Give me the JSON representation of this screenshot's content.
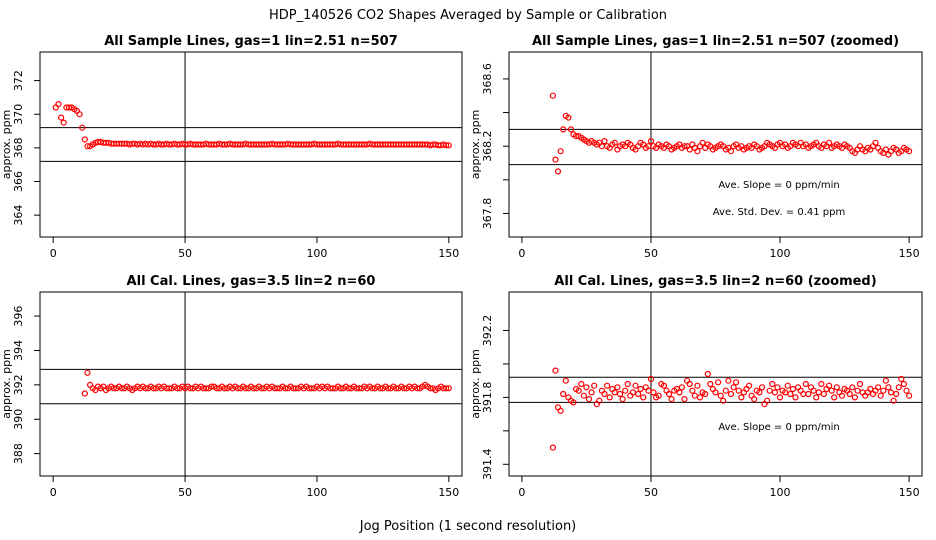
{
  "page": {
    "main_title": "HDP_140526  CO2 Shapes Averaged by Sample or Calibration",
    "x_axis_caption": "Jog Position (1 second resolution)"
  },
  "chart_data": [
    {
      "type": "scatter",
      "title": "All Sample Lines, gas=1 lin=2.51 n=507",
      "xlabel": "",
      "ylabel": "approx. ppm",
      "xlim": [
        -5,
        155
      ],
      "ylim": [
        362.7,
        373.7
      ],
      "xticks": [
        0,
        50,
        100,
        150
      ],
      "yticks": [
        364,
        366,
        368,
        370,
        372
      ],
      "hlines": [
        369.2,
        367.2
      ],
      "vline": 50,
      "annotations": [],
      "x": [
        1,
        2,
        3,
        4,
        5,
        6,
        7,
        8,
        9,
        10,
        11,
        12,
        13,
        14,
        15,
        16,
        17,
        18,
        19,
        20,
        21,
        22,
        23,
        24,
        25,
        26,
        27,
        28,
        29,
        30,
        31,
        32,
        33,
        34,
        35,
        36,
        37,
        38,
        39,
        40,
        41,
        42,
        43,
        44,
        45,
        46,
        47,
        48,
        49,
        50,
        51,
        52,
        53,
        54,
        55,
        56,
        57,
        58,
        59,
        60,
        61,
        62,
        63,
        64,
        65,
        66,
        67,
        68,
        69,
        70,
        71,
        72,
        73,
        74,
        75,
        76,
        77,
        78,
        79,
        80,
        81,
        82,
        83,
        84,
        85,
        86,
        87,
        88,
        89,
        90,
        91,
        92,
        93,
        94,
        95,
        96,
        97,
        98,
        99,
        100,
        101,
        102,
        103,
        104,
        105,
        106,
        107,
        108,
        109,
        110,
        111,
        112,
        113,
        114,
        115,
        116,
        117,
        118,
        119,
        120,
        121,
        122,
        123,
        124,
        125,
        126,
        127,
        128,
        129,
        130,
        131,
        132,
        133,
        134,
        135,
        136,
        137,
        138,
        139,
        140,
        141,
        142,
        143,
        144,
        145,
        146,
        147,
        148,
        149,
        150
      ],
      "values": [
        370.4,
        370.6,
        369.8,
        369.5,
        370.4,
        370.4,
        370.4,
        370.3,
        370.2,
        370.0,
        369.2,
        368.5,
        368.1,
        368.1,
        368.2,
        368.3,
        368.35,
        368.35,
        368.3,
        368.3,
        368.3,
        368.25,
        368.25,
        368.25,
        368.25,
        368.25,
        368.25,
        368.25,
        368.2,
        368.25,
        368.25,
        368.2,
        368.25,
        368.2,
        368.25,
        368.2,
        368.25,
        368.2,
        368.2,
        368.25,
        368.2,
        368.2,
        368.25,
        368.2,
        368.2,
        368.25,
        368.2,
        368.2,
        368.25,
        368.2,
        368.2,
        368.25,
        368.2,
        368.2,
        368.2,
        368.2,
        368.2,
        368.25,
        368.2,
        368.2,
        368.2,
        368.2,
        368.25,
        368.2,
        368.2,
        368.2,
        368.25,
        368.2,
        368.2,
        368.2,
        368.2,
        368.2,
        368.25,
        368.2,
        368.2,
        368.2,
        368.2,
        368.2,
        368.2,
        368.2,
        368.2,
        368.2,
        368.25,
        368.2,
        368.2,
        368.2,
        368.2,
        368.2,
        368.25,
        368.2,
        368.2,
        368.2,
        368.2,
        368.2,
        368.2,
        368.2,
        368.2,
        368.2,
        368.25,
        368.2,
        368.2,
        368.2,
        368.2,
        368.2,
        368.2,
        368.2,
        368.2,
        368.25,
        368.2,
        368.2,
        368.2,
        368.2,
        368.2,
        368.2,
        368.2,
        368.2,
        368.2,
        368.2,
        368.2,
        368.25,
        368.2,
        368.2,
        368.2,
        368.2,
        368.2,
        368.2,
        368.2,
        368.2,
        368.2,
        368.2,
        368.2,
        368.2,
        368.2,
        368.2,
        368.2,
        368.2,
        368.2,
        368.2,
        368.2,
        368.2,
        368.2,
        368.2,
        368.15,
        368.2,
        368.2,
        368.15,
        368.15,
        368.2,
        368.15,
        368.15
      ]
    },
    {
      "type": "scatter",
      "title": "All Sample Lines, gas=1 lin=2.51 n=507 (zoomed)",
      "xlabel": "",
      "ylabel": "approx. ppm",
      "xlim": [
        -5,
        155
      ],
      "ylim": [
        367.66,
        368.76
      ],
      "xticks": [
        0,
        50,
        100,
        150
      ],
      "yticks": [
        367.8,
        368.0,
        368.2,
        368.4,
        368.6
      ],
      "ytick_labels": [
        "367.8",
        "",
        "368.2",
        "",
        "368.6"
      ],
      "hlines": [
        368.3,
        368.09
      ],
      "vline": 50,
      "annotations": [
        "Ave. Slope =  0  ppm/min",
        "Ave. Std. Dev. =  0.41  ppm"
      ],
      "x": [
        12,
        13,
        14,
        15,
        16,
        17,
        18,
        19,
        20,
        21,
        22,
        23,
        24,
        25,
        26,
        27,
        28,
        29,
        30,
        31,
        32,
        33,
        34,
        35,
        36,
        37,
        38,
        39,
        40,
        41,
        42,
        43,
        44,
        45,
        46,
        47,
        48,
        49,
        50,
        51,
        52,
        53,
        54,
        55,
        56,
        57,
        58,
        59,
        60,
        61,
        62,
        63,
        64,
        65,
        66,
        67,
        68,
        69,
        70,
        71,
        72,
        73,
        74,
        75,
        76,
        77,
        78,
        79,
        80,
        81,
        82,
        83,
        84,
        85,
        86,
        87,
        88,
        89,
        90,
        91,
        92,
        93,
        94,
        95,
        96,
        97,
        98,
        99,
        100,
        101,
        102,
        103,
        104,
        105,
        106,
        107,
        108,
        109,
        110,
        111,
        112,
        113,
        114,
        115,
        116,
        117,
        118,
        119,
        120,
        121,
        122,
        123,
        124,
        125,
        126,
        127,
        128,
        129,
        130,
        131,
        132,
        133,
        134,
        135,
        136,
        137,
        138,
        139,
        140,
        141,
        142,
        143,
        144,
        145,
        146,
        147,
        148,
        149,
        150
      ],
      "values": [
        368.5,
        368.12,
        368.05,
        368.17,
        368.3,
        368.38,
        368.37,
        368.3,
        368.27,
        368.26,
        368.26,
        368.25,
        368.24,
        368.23,
        368.22,
        368.23,
        368.22,
        368.21,
        368.22,
        368.2,
        368.23,
        368.2,
        368.19,
        368.21,
        368.22,
        368.18,
        368.2,
        368.21,
        368.2,
        368.22,
        368.21,
        368.19,
        368.18,
        368.2,
        368.22,
        368.21,
        368.19,
        368.2,
        368.23,
        368.2,
        368.19,
        368.21,
        368.2,
        368.19,
        368.21,
        368.2,
        368.18,
        368.19,
        368.2,
        368.21,
        368.19,
        368.2,
        368.2,
        368.18,
        368.21,
        368.19,
        368.17,
        368.2,
        368.22,
        368.19,
        368.21,
        368.2,
        368.18,
        368.19,
        368.2,
        368.21,
        368.2,
        368.18,
        368.19,
        368.17,
        368.2,
        368.21,
        368.19,
        368.2,
        368.18,
        368.19,
        368.2,
        368.19,
        368.21,
        368.2,
        368.18,
        368.19,
        368.2,
        368.22,
        368.21,
        368.2,
        368.19,
        368.21,
        368.22,
        368.2,
        368.21,
        368.19,
        368.2,
        368.22,
        368.21,
        368.2,
        368.22,
        368.2,
        368.21,
        368.19,
        368.2,
        368.21,
        368.22,
        368.2,
        368.19,
        368.21,
        368.2,
        368.22,
        368.19,
        368.2,
        368.21,
        368.2,
        368.19,
        368.21,
        368.2,
        368.19,
        368.17,
        368.16,
        368.18,
        368.2,
        368.18,
        368.17,
        368.19,
        368.18,
        368.2,
        368.22,
        368.19,
        368.17,
        368.16,
        368.18,
        368.15,
        368.17,
        368.19,
        368.18,
        368.16,
        368.17,
        368.19,
        368.18,
        368.17
      ]
    },
    {
      "type": "scatter",
      "title": "All Cal. Lines, gas=3.5 lin=2 n=60",
      "xlabel": "",
      "ylabel": "approx. ppm",
      "xlim": [
        -5,
        155
      ],
      "ylim": [
        386.7,
        397.4
      ],
      "xticks": [
        0,
        50,
        100,
        150
      ],
      "yticks": [
        388,
        390,
        392,
        394,
        396
      ],
      "hlines": [
        392.9,
        390.9
      ],
      "vline": 50,
      "annotations": [],
      "x": [
        12,
        13,
        14,
        15,
        16,
        17,
        18,
        19,
        20,
        21,
        22,
        23,
        24,
        25,
        26,
        27,
        28,
        29,
        30,
        31,
        32,
        33,
        34,
        35,
        36,
        37,
        38,
        39,
        40,
        41,
        42,
        43,
        44,
        45,
        46,
        47,
        48,
        49,
        50,
        51,
        52,
        53,
        54,
        55,
        56,
        57,
        58,
        59,
        60,
        61,
        62,
        63,
        64,
        65,
        66,
        67,
        68,
        69,
        70,
        71,
        72,
        73,
        74,
        75,
        76,
        77,
        78,
        79,
        80,
        81,
        82,
        83,
        84,
        85,
        86,
        87,
        88,
        89,
        90,
        91,
        92,
        93,
        94,
        95,
        96,
        97,
        98,
        99,
        100,
        101,
        102,
        103,
        104,
        105,
        106,
        107,
        108,
        109,
        110,
        111,
        112,
        113,
        114,
        115,
        116,
        117,
        118,
        119,
        120,
        121,
        122,
        123,
        124,
        125,
        126,
        127,
        128,
        129,
        130,
        131,
        132,
        133,
        134,
        135,
        136,
        137,
        138,
        139,
        140,
        141,
        142,
        143,
        144,
        145,
        146,
        147,
        148,
        149,
        150
      ],
      "values": [
        391.5,
        392.7,
        392.0,
        391.8,
        391.7,
        391.9,
        391.8,
        391.9,
        391.7,
        391.8,
        391.9,
        391.8,
        391.8,
        391.9,
        391.8,
        391.8,
        391.9,
        391.8,
        391.7,
        391.8,
        391.9,
        391.8,
        391.9,
        391.8,
        391.8,
        391.9,
        391.8,
        391.8,
        391.9,
        391.8,
        391.9,
        391.8,
        391.8,
        391.8,
        391.9,
        391.8,
        391.8,
        391.9,
        391.8,
        391.9,
        391.8,
        391.8,
        391.9,
        391.8,
        391.9,
        391.8,
        391.8,
        391.8,
        391.9,
        391.9,
        391.8,
        391.8,
        391.9,
        391.8,
        391.8,
        391.9,
        391.8,
        391.9,
        391.8,
        391.8,
        391.9,
        391.8,
        391.8,
        391.9,
        391.8,
        391.8,
        391.9,
        391.8,
        391.8,
        391.9,
        391.8,
        391.9,
        391.8,
        391.8,
        391.8,
        391.9,
        391.8,
        391.8,
        391.9,
        391.8,
        391.8,
        391.8,
        391.9,
        391.8,
        391.9,
        391.8,
        391.8,
        391.8,
        391.9,
        391.8,
        391.9,
        391.8,
        391.9,
        391.8,
        391.8,
        391.8,
        391.9,
        391.8,
        391.8,
        391.9,
        391.8,
        391.8,
        391.9,
        391.8,
        391.8,
        391.8,
        391.9,
        391.8,
        391.9,
        391.8,
        391.8,
        391.9,
        391.8,
        391.8,
        391.9,
        391.8,
        391.8,
        391.9,
        391.8,
        391.8,
        391.9,
        391.8,
        391.8,
        391.9,
        391.8,
        391.9,
        391.8,
        391.8,
        391.9,
        392.0,
        391.9,
        391.8,
        391.8,
        391.7,
        391.8,
        391.9,
        391.8,
        391.8,
        391.8
      ]
    },
    {
      "type": "scatter",
      "title": "All Cal. Lines, gas=3.5 lin=2 n=60 (zoomed)",
      "xlabel": "",
      "ylabel": "approx. ppm",
      "xlim": [
        -5,
        155
      ],
      "ylim": [
        391.33,
        392.43
      ],
      "xticks": [
        0,
        50,
        100,
        150
      ],
      "yticks": [
        391.4,
        391.6,
        391.8,
        392.0,
        392.2
      ],
      "ytick_labels": [
        "391.4",
        "",
        "391.8",
        "",
        "392.2"
      ],
      "hlines": [
        391.92,
        391.77
      ],
      "vline": 50,
      "annotations": [
        "Ave. Slope =  0  ppm/min"
      ],
      "x": [
        12,
        13,
        14,
        15,
        16,
        17,
        18,
        19,
        20,
        21,
        22,
        23,
        24,
        25,
        26,
        27,
        28,
        29,
        30,
        31,
        32,
        33,
        34,
        35,
        36,
        37,
        38,
        39,
        40,
        41,
        42,
        43,
        44,
        45,
        46,
        47,
        48,
        49,
        50,
        51,
        52,
        53,
        54,
        55,
        56,
        57,
        58,
        59,
        60,
        61,
        62,
        63,
        64,
        65,
        66,
        67,
        68,
        69,
        70,
        71,
        72,
        73,
        74,
        75,
        76,
        77,
        78,
        79,
        80,
        81,
        82,
        83,
        84,
        85,
        86,
        87,
        88,
        89,
        90,
        91,
        92,
        93,
        94,
        95,
        96,
        97,
        98,
        99,
        100,
        101,
        102,
        103,
        104,
        105,
        106,
        107,
        108,
        109,
        110,
        111,
        112,
        113,
        114,
        115,
        116,
        117,
        118,
        119,
        120,
        121,
        122,
        123,
        124,
        125,
        126,
        127,
        128,
        129,
        130,
        131,
        132,
        133,
        134,
        135,
        136,
        137,
        138,
        139,
        140,
        141,
        142,
        143,
        144,
        145,
        146,
        147,
        148,
        149,
        150
      ],
      "values": [
        391.5,
        391.96,
        391.74,
        391.72,
        391.82,
        391.9,
        391.8,
        391.78,
        391.77,
        391.85,
        391.84,
        391.88,
        391.81,
        391.86,
        391.79,
        391.83,
        391.87,
        391.76,
        391.78,
        391.84,
        391.82,
        391.87,
        391.8,
        391.85,
        391.83,
        391.86,
        391.82,
        391.79,
        391.84,
        391.88,
        391.81,
        391.83,
        391.87,
        391.82,
        391.85,
        391.8,
        391.86,
        391.84,
        391.91,
        391.83,
        391.8,
        391.81,
        391.88,
        391.87,
        391.84,
        391.82,
        391.79,
        391.84,
        391.85,
        391.83,
        391.86,
        391.79,
        391.9,
        391.88,
        391.84,
        391.81,
        391.87,
        391.8,
        391.83,
        391.82,
        391.94,
        391.88,
        391.85,
        391.83,
        391.89,
        391.81,
        391.78,
        391.84,
        391.9,
        391.82,
        391.86,
        391.89,
        391.84,
        391.8,
        391.83,
        391.85,
        391.87,
        391.81,
        391.79,
        391.84,
        391.83,
        391.86,
        391.76,
        391.78,
        391.84,
        391.88,
        391.83,
        391.86,
        391.8,
        391.84,
        391.83,
        391.87,
        391.82,
        391.85,
        391.8,
        391.86,
        391.84,
        391.82,
        391.88,
        391.82,
        391.86,
        391.84,
        391.8,
        391.83,
        391.88,
        391.82,
        391.85,
        391.87,
        391.84,
        391.8,
        391.86,
        391.83,
        391.81,
        391.85,
        391.84,
        391.82,
        391.86,
        391.8,
        391.84,
        391.88,
        391.83,
        391.81,
        391.83,
        391.85,
        391.82,
        391.84,
        391.86,
        391.81,
        391.84,
        391.9,
        391.86,
        391.83,
        391.78,
        391.82,
        391.86,
        391.91,
        391.88,
        391.84,
        391.81
      ]
    }
  ],
  "colors": {
    "points": "#ff0000",
    "axes": "#000000",
    "background": "#ffffff"
  }
}
